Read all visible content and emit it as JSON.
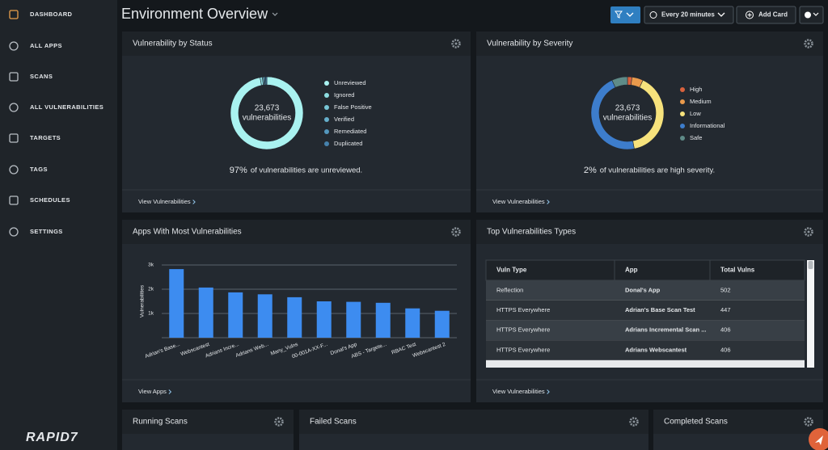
{
  "sidebar": {
    "items": [
      "DASHBOARD",
      "ALL APPS",
      "SCANS",
      "ALL VULNERABILITIES",
      "TARGETS",
      "TAGS",
      "SCHEDULES",
      "SETTINGS"
    ],
    "logo": "RAPID7"
  },
  "header": {
    "title": "Environment Overview",
    "refresh": "Every 20 minutes",
    "add_card": "Add Card"
  },
  "status_card": {
    "title": "Vulnerability by Status",
    "total": "23,673",
    "total_label": "vulnerabilities",
    "chart": {
      "type": "donut",
      "categories": [
        "Unreviewed",
        "Ignored",
        "False Positive",
        "Verified",
        "Remediated",
        "Duplicated"
      ],
      "values": [
        97,
        1,
        0.5,
        0.5,
        0.5,
        0.5
      ],
      "colors": [
        "#a9f2f0",
        "#8ddde1",
        "#78c6d6",
        "#66afcb",
        "#5497bd",
        "#4682ad"
      ]
    },
    "highlight": "97%",
    "summary": "of vulnerabilities are unreviewed.",
    "link": "View Vulnerabilities"
  },
  "severity_card": {
    "title": "Vulnerability by Severity",
    "total": "23,673",
    "total_label": "vulnerabilities",
    "chart": {
      "type": "donut",
      "categories": [
        "High",
        "Medium",
        "Low",
        "Informational",
        "Safe"
      ],
      "values": [
        2,
        5,
        40,
        46,
        7
      ],
      "colors": [
        "#d9623d",
        "#e99a4c",
        "#f6e27c",
        "#3d7dcc",
        "#5f8b88"
      ]
    },
    "highlight": "2%",
    "summary": "of vulnerabilities are high severity.",
    "link": "View Vulnerabilities"
  },
  "apps_card": {
    "title": "Apps With Most Vulnerabilities",
    "chart": {
      "type": "bar",
      "y_label": "Vulnerabilities",
      "categories": [
        "Adrian's Base...",
        "Webscantest",
        "Adrians Incre...",
        "Adrians Web...",
        "Many_Vulns",
        "00-001A-XX-F...",
        "Donal's App",
        "ABS - Targete...",
        "RBAC Test",
        "Webscantest 2"
      ],
      "values": [
        2830,
        2070,
        1870,
        1790,
        1670,
        1500,
        1480,
        1440,
        1210,
        1110
      ],
      "color": "#3d8cf0",
      "ylim": [
        0,
        3000
      ],
      "yticks": [
        {
          "value": 1000,
          "label": "1k"
        },
        {
          "value": 2000,
          "label": "2k"
        },
        {
          "value": 3000,
          "label": "3k"
        }
      ],
      "grid": true
    },
    "link": "View Apps"
  },
  "types_card": {
    "title": "Top Vulnerabilities Types",
    "table": {
      "columns": [
        "Vuln Type",
        "App",
        "Total Vulns"
      ],
      "rows": [
        [
          "Reflection",
          "Donal's App",
          502
        ],
        [
          "HTTPS Everywhere",
          "Adrian's Base Scan Test",
          447
        ],
        [
          "HTTPS Everywhere",
          "Adrians Incremental Scan ...",
          406
        ],
        [
          "HTTPS Everywhere",
          "Adrians Webscantest",
          406
        ]
      ]
    },
    "link": "View Vulnerabilities"
  },
  "bottom_cards": [
    "Running Scans",
    "Failed Scans",
    "Completed Scans"
  ]
}
